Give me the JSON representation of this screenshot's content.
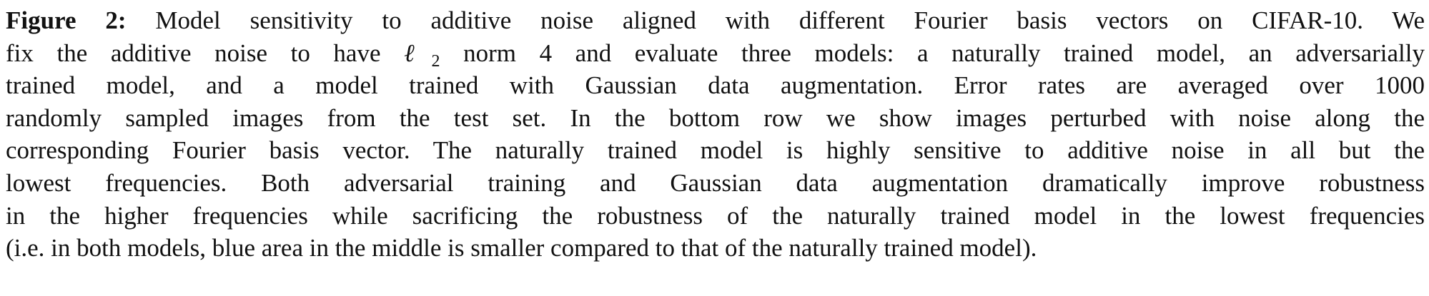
{
  "caption": {
    "label": "Figure 2:",
    "line1_rest": "Model sensitivity to additive noise aligned with different Fourier basis vectors on CIFAR-10. We",
    "line2_pre": "fix the additive noise to have",
    "norm_symbol": "ℓ",
    "norm_subscript": "2",
    "line2_post": "norm 4 and evaluate three models: a naturally trained model, an adversarially",
    "line3": "trained model, and a model trained with Gaussian data augmentation.  Error rates are averaged over 1000",
    "line4": "randomly sampled images from the test set. In the bottom row we show images perturbed with noise along the",
    "line5": "corresponding Fourier basis vector. The naturally trained model is highly sensitive to additive noise in all but the",
    "line6": "lowest frequencies. Both adversarial training and Gaussian data augmentation dramatically improve robustness",
    "line7": "in the higher frequencies while sacrificing the robustness of the naturally trained model in the lowest frequencies",
    "line8": "(i.e. in both models, blue area in the middle is smaller compared to that of the naturally trained model)."
  }
}
